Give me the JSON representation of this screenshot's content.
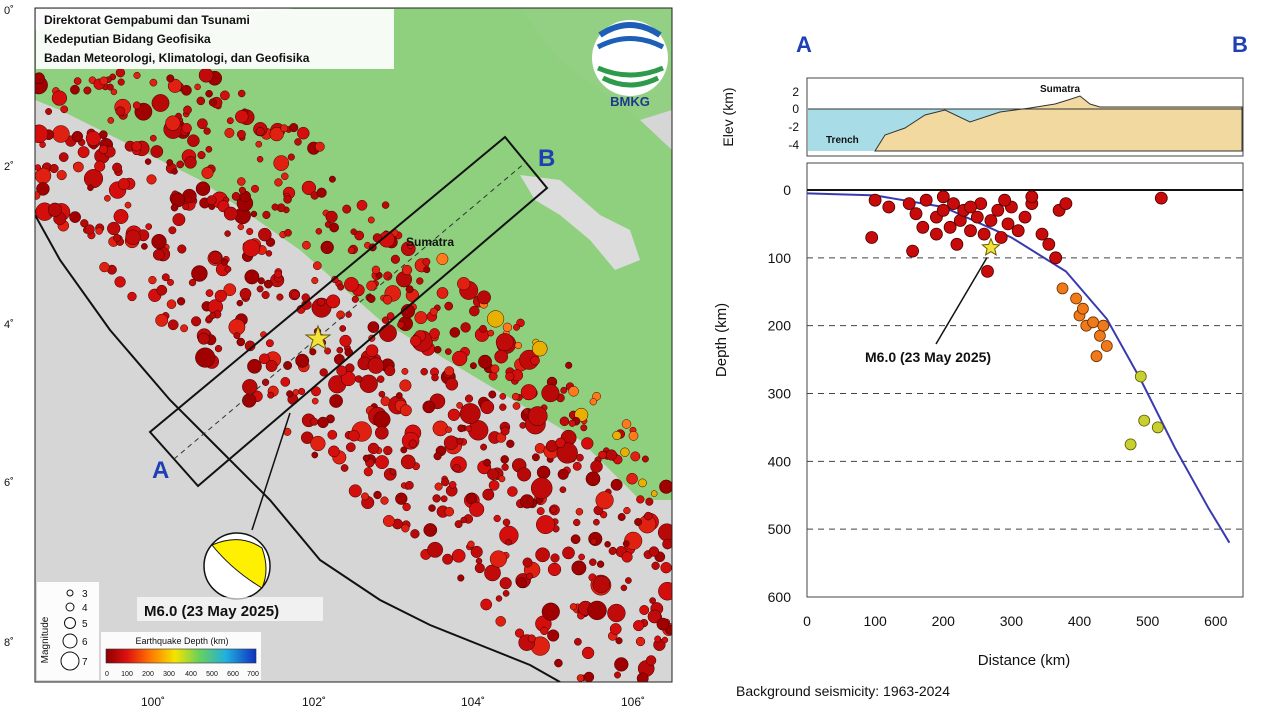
{
  "map": {
    "agency_lines": [
      "Direktorat Gempabumi dan Tsunami",
      "Kedeputian Bidang Geofisika",
      "Badan Meteorologi, Klimatologi, dan Geofisika"
    ],
    "logo_text": "BMKG",
    "point_a_label": "A",
    "point_b_label": "B",
    "region_label": "Sumatra",
    "event_label": "M6.0 (23 May 2025)",
    "lon_ticks": [
      "100˚",
      "102˚",
      "104˚",
      "106˚"
    ],
    "lat_ticks": [
      "0˚",
      "2˚",
      "4˚",
      "6˚",
      "8˚"
    ],
    "magnitude_legend": {
      "title": "Magnitude",
      "values": [
        "3",
        "4",
        "5",
        "6",
        "7"
      ]
    },
    "depth_legend": {
      "title": "Earthquake Depth (km)",
      "ticks": [
        "0",
        "100",
        "200",
        "300",
        "400",
        "500",
        "600",
        "700"
      ],
      "colors": [
        "#8b0000",
        "#e01010",
        "#ff7a00",
        "#f5e400",
        "#6ad05a",
        "#20b0e0",
        "#1030c0"
      ]
    },
    "colors": {
      "land": "#8fd07e",
      "sea": "#dcdcdc",
      "quake_shallow": "#c80a0a",
      "mainshock_star": "#f3e23a",
      "beachball": "#ffef00"
    }
  },
  "profile": {
    "label_a": "A",
    "label_b": "B",
    "elev_axis_label": "Elev (km)",
    "elev_ticks": [
      "2",
      "0",
      "-2",
      "-4"
    ],
    "trench_label": "Trench",
    "sumatra_label": "Sumatra",
    "depth_axis_label": "Depth (km)",
    "depth_ticks": [
      "0",
      "100",
      "200",
      "300",
      "400",
      "500",
      "600"
    ],
    "distance_ticks": [
      "0",
      "100",
      "200",
      "300",
      "400",
      "500",
      "600"
    ],
    "distance_axis_label": "Distance (km)",
    "event_label": "M6.0 (23 May 2025)",
    "caption": "Background seismicity: 1963-2024",
    "colors": {
      "sea": "#a8dde8",
      "crust": "#f1d9a0",
      "slab_curve": "#3a3ab0"
    }
  },
  "chart_data": {
    "type": "scatter",
    "xlabel": "Distance (km)",
    "ylabel": "Depth (km)",
    "xlim": [
      0,
      640
    ],
    "ylim": [
      600,
      0
    ],
    "grid": "dashed horizontal at 100 km intervals",
    "mainshock": {
      "x": 270,
      "y": 85
    },
    "slab_curve": [
      [
        0,
        5
      ],
      [
        100,
        8
      ],
      [
        200,
        25
      ],
      [
        300,
        70
      ],
      [
        380,
        120
      ],
      [
        440,
        190
      ],
      [
        490,
        280
      ],
      [
        540,
        380
      ],
      [
        590,
        470
      ],
      [
        620,
        520
      ]
    ],
    "series": [
      {
        "values": [
          [
            100,
            15
          ],
          [
            120,
            25
          ],
          [
            150,
            20
          ],
          [
            160,
            35
          ],
          [
            175,
            15
          ],
          [
            190,
            40
          ],
          [
            200,
            30
          ],
          [
            210,
            55
          ],
          [
            215,
            20
          ],
          [
            225,
            45
          ],
          [
            230,
            30
          ],
          [
            240,
            60
          ],
          [
            250,
            40
          ],
          [
            255,
            20
          ],
          [
            260,
            65
          ],
          [
            270,
            45
          ],
          [
            280,
            30
          ],
          [
            285,
            70
          ],
          [
            295,
            50
          ],
          [
            300,
            25
          ],
          [
            310,
            60
          ],
          [
            320,
            40
          ],
          [
            330,
            20
          ],
          [
            345,
            65
          ],
          [
            355,
            80
          ],
          [
            365,
            100
          ],
          [
            370,
            30
          ],
          [
            380,
            20
          ],
          [
            95,
            70
          ],
          [
            155,
            90
          ],
          [
            520,
            12
          ],
          [
            265,
            120
          ],
          [
            220,
            80
          ],
          [
            190,
            65
          ],
          [
            240,
            25
          ],
          [
            170,
            55
          ],
          [
            200,
            10
          ],
          [
            330,
            10
          ],
          [
            290,
            15
          ]
        ]
      },
      {
        "values": [
          [
            375,
            145
          ],
          [
            395,
            160
          ],
          [
            400,
            185
          ],
          [
            410,
            200
          ],
          [
            420,
            195
          ],
          [
            430,
            215
          ],
          [
            440,
            230
          ],
          [
            425,
            245
          ],
          [
            405,
            175
          ],
          [
            435,
            200
          ]
        ]
      },
      {
        "values": [
          [
            490,
            275
          ],
          [
            495,
            340
          ],
          [
            515,
            350
          ],
          [
            475,
            375
          ]
        ]
      }
    ]
  }
}
